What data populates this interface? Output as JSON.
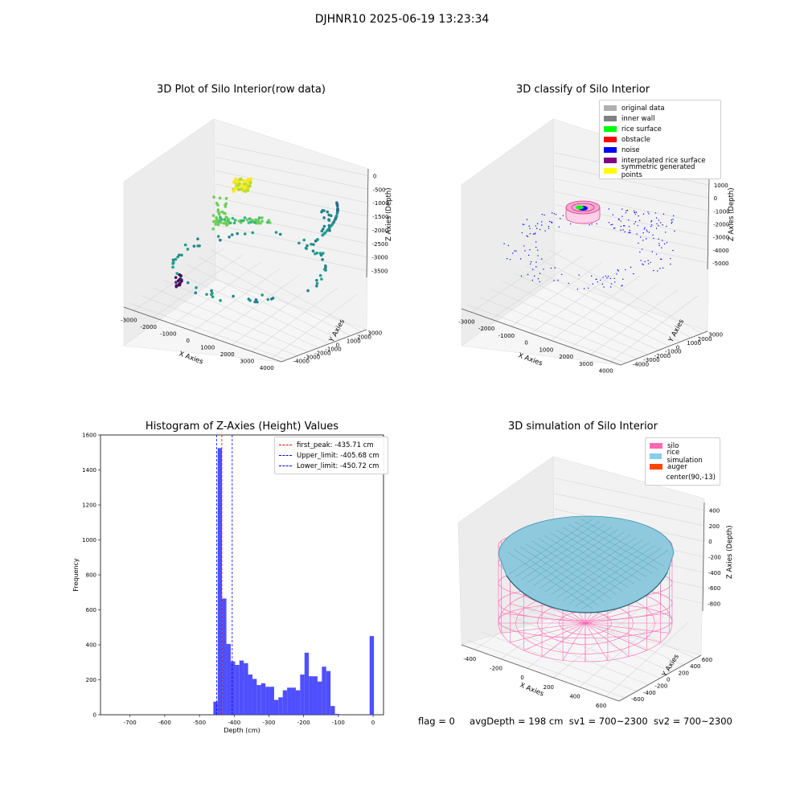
{
  "suptitle": "DJHNR10 2025-06-19 13:23:34",
  "chart_data": [
    {
      "type": "scatter",
      "title": "3D Plot of Silo Interior(row data)",
      "xlabel": "X Axies",
      "ylabel": "Y Axies",
      "zlabel": "Z Axies (Depth)",
      "x_ticks": [
        "-3000",
        "-2000",
        "-1000",
        "0",
        "1000",
        "2000",
        "3000",
        "4000"
      ],
      "y_ticks": [
        "-4000",
        "-3000",
        "-2000",
        "-1000",
        "0",
        "1000",
        "2000",
        "3000"
      ],
      "z_ticks": [
        "0",
        "-500",
        "-1000",
        "-1500",
        "-2000",
        "-2500",
        "-3000",
        "-3500"
      ],
      "colormap": "viridis"
    },
    {
      "type": "scatter",
      "title": "3D classify of Silo Interior",
      "xlabel": "X Axies",
      "ylabel": "Y Axies",
      "zlabel": "Z Axies (Depth)",
      "x_ticks": [
        "-3000",
        "-2000",
        "-1000",
        "0",
        "1000",
        "2000",
        "3000",
        "4000"
      ],
      "y_ticks": [
        "-4000",
        "-3000",
        "-2000",
        "-1000",
        "0",
        "1000",
        "2000",
        "3000"
      ],
      "z_ticks": [
        "1000",
        "0",
        "-1000",
        "-2000",
        "-3000",
        "-4000",
        "-5000"
      ],
      "legend": [
        {
          "name": "original data",
          "color": "#b0b0b0"
        },
        {
          "name": "inner wall",
          "color": "#808080"
        },
        {
          "name": "rice surface",
          "color": "#00ff00"
        },
        {
          "name": "obstacle",
          "color": "#ff0000"
        },
        {
          "name": "noise",
          "color": "#0000ff"
        },
        {
          "name": "interpolated rice surface",
          "color": "#800080"
        },
        {
          "name": "symmetric generated points",
          "color": "#ffff00"
        }
      ]
    },
    {
      "type": "bar",
      "title": "Histogram of Z-Axies (Height) Values",
      "xlabel": "Depth (cm)",
      "ylabel": "Frequency",
      "xlim": [
        -785,
        30
      ],
      "ylim": [
        0,
        1600
      ],
      "x_ticks": [
        -700,
        -600,
        -500,
        -400,
        -300,
        -200,
        -100,
        0
      ],
      "y_ticks": [
        0,
        200,
        400,
        600,
        800,
        1000,
        1200,
        1400,
        1600
      ],
      "bin_width": 12.5,
      "bin_starts": [
        -460,
        -447.5,
        -435,
        -422.5,
        -410,
        -397.5,
        -385,
        -372.5,
        -360,
        -347.5,
        -335,
        -322.5,
        -310,
        -297.5,
        -285,
        -272.5,
        -260,
        -247.5,
        -235,
        -222.5,
        -210,
        -197.5,
        -185,
        -172.5,
        -160,
        -147.5,
        -135,
        -122.5,
        -110,
        -97.5,
        -85,
        -72.5,
        -60,
        -47.5,
        -35,
        -22.5,
        -10
      ],
      "values": [
        75,
        1525,
        665,
        405,
        305,
        285,
        310,
        295,
        230,
        205,
        170,
        180,
        160,
        160,
        85,
        100,
        140,
        155,
        155,
        140,
        230,
        355,
        220,
        220,
        190,
        275,
        250,
        50,
        5,
        0,
        0,
        0,
        0,
        0,
        0,
        0,
        450
      ],
      "bar_color": "#4040ff",
      "vlines": [
        {
          "name": "first_peak: -435.71 cm",
          "x": -435.71,
          "color": "#ff0000"
        },
        {
          "name": "Upper_limit: -405.68 cm",
          "x": -405.68,
          "color": "#0000ff"
        },
        {
          "name": "Lower_limit: -450.72 cm",
          "x": -450.72,
          "color": "#0000ff"
        }
      ]
    },
    {
      "type": "surface",
      "title": "3D simulation of Silo Interior",
      "xlabel": "X Axies",
      "ylabel": "Y Axies",
      "zlabel": "Z Axies (Depth)",
      "x_ticks": [
        "-400",
        "-200",
        "0",
        "200",
        "400",
        "600"
      ],
      "y_ticks": [
        "-600",
        "-400",
        "-200",
        "0",
        "200",
        "400",
        "600"
      ],
      "z_ticks": [
        "400",
        "200",
        "0",
        "-200",
        "-400",
        "-600",
        "-800"
      ],
      "legend": [
        {
          "name": "silo",
          "color": "#ff69b4"
        },
        {
          "name": "rice simulation",
          "color": "#87ceeb"
        },
        {
          "name": "auger",
          "color": "#ff4500"
        },
        {
          "name": "center(90,-13)",
          "color": "#ffffff"
        }
      ]
    }
  ],
  "footer": {
    "flag": "flag = 0",
    "avg_depth": "avgDepth = 198 cm",
    "sv1": "sv1 = 700~2300",
    "sv2": "sv2 = 700~2300"
  }
}
